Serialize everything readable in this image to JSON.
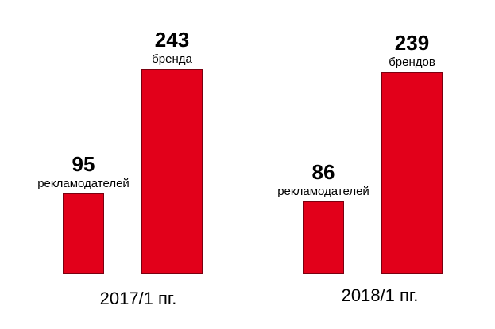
{
  "chart_data": {
    "type": "bar",
    "categories": [
      "2017/1 пг.",
      "2018/1 пг."
    ],
    "series": [
      {
        "values": [
          95,
          86
        ],
        "unit_labels": [
          "рекламодателей",
          "рекламодателей"
        ]
      },
      {
        "values": [
          243,
          239
        ],
        "unit_labels": [
          "бренда",
          "брендов"
        ]
      }
    ],
    "ylim": [
      0,
      260
    ],
    "grid": false,
    "legend": "none",
    "bar_color": "#e2001a"
  }
}
